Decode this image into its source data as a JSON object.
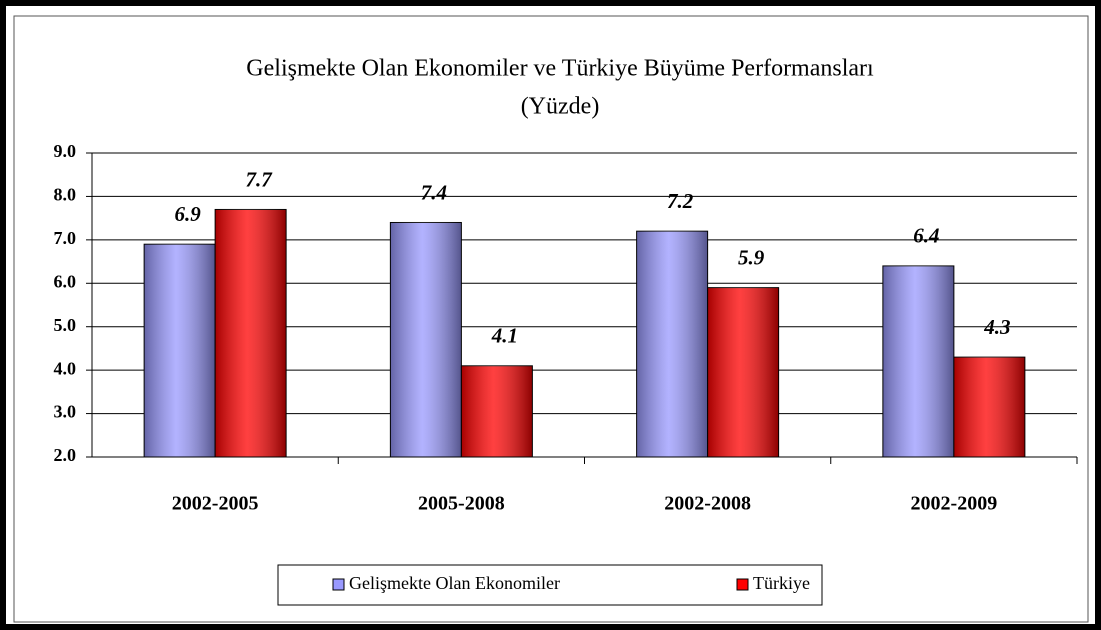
{
  "chart_data": {
    "type": "bar",
    "title": "Gelişmekte Olan Ekonomiler ve Türkiye Büyüme Performansları",
    "subtitle": "(Yüzde)",
    "categories": [
      "2002-2005",
      "2005-2008",
      "2002-2008",
      "2002-2009"
    ],
    "series": [
      {
        "name": "Gelişmekte Olan Ekonomiler",
        "color": "#9999ff",
        "values": [
          6.9,
          7.4,
          7.2,
          6.4
        ]
      },
      {
        "name": "Türkiye",
        "color": "#ff0000",
        "values": [
          7.7,
          4.1,
          5.9,
          4.3
        ]
      }
    ],
    "ylim": [
      2,
      9
    ],
    "yticks": [
      {
        "value": 2,
        "label": "2.0"
      },
      {
        "value": 3,
        "label": "3.0"
      },
      {
        "value": 4,
        "label": "4.0"
      },
      {
        "value": 5,
        "label": "5.0"
      },
      {
        "value": 6,
        "label": "6.0"
      },
      {
        "value": 7,
        "label": "7.0"
      },
      {
        "value": 8,
        "label": "8.0"
      },
      {
        "value": 9,
        "label": "9.0"
      }
    ],
    "grid": true,
    "legend": "bottom"
  }
}
